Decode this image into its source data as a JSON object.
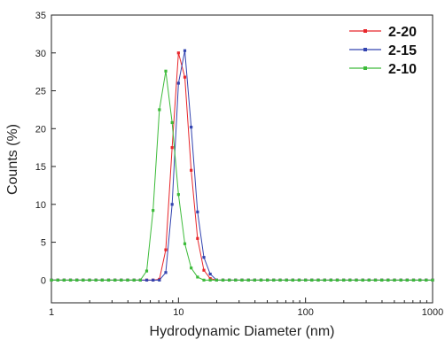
{
  "chart_data": {
    "type": "line",
    "xscale": "log",
    "xlim": [
      1,
      1000
    ],
    "ylim": [
      -3,
      35
    ],
    "xlabel": "Hydrodynamic Diameter (nm)",
    "ylabel": "Counts (%)",
    "xticks": [
      {
        "value": 1,
        "label": "1"
      },
      {
        "value": 10,
        "label": "10"
      },
      {
        "value": 100,
        "label": "100"
      },
      {
        "value": 1000,
        "label": "1000"
      }
    ],
    "yticks": [
      0,
      5,
      10,
      15,
      20,
      25,
      30,
      35
    ],
    "legend_position": "top-right",
    "grid": false,
    "series": [
      {
        "name": "2-20",
        "color": "#e8262b",
        "x": [
          1.0,
          1.122,
          1.259,
          1.413,
          1.585,
          1.778,
          1.995,
          2.239,
          2.512,
          2.818,
          3.162,
          3.548,
          3.981,
          4.467,
          5.012,
          5.623,
          6.31,
          7.079,
          7.943,
          8.913,
          10.0,
          11.22,
          12.59,
          14.13,
          15.85,
          17.78,
          19.95,
          22.39,
          25.12,
          28.18,
          31.62,
          35.48,
          39.81,
          44.67,
          50.12,
          56.23,
          63.1,
          70.79,
          79.43,
          89.13,
          100.0,
          112.2,
          125.9,
          141.3,
          158.5,
          177.8,
          199.5,
          223.9,
          251.2,
          281.8,
          316.2,
          354.8,
          398.1,
          446.7,
          501.2,
          562.3,
          631.0,
          707.9,
          794.3,
          891.3,
          1000.0
        ],
        "values": [
          0,
          0,
          0,
          0,
          0,
          0,
          0,
          0,
          0,
          0,
          0,
          0,
          0,
          0,
          0,
          0,
          0,
          0.1,
          4.0,
          17.5,
          30.0,
          26.8,
          14.5,
          5.5,
          1.3,
          0.2,
          0,
          0,
          0,
          0,
          0,
          0,
          0,
          0,
          0,
          0,
          0,
          0,
          0,
          0,
          0,
          0,
          0,
          0,
          0,
          0,
          0,
          0,
          0,
          0,
          0,
          0,
          0,
          0,
          0,
          0,
          0,
          0,
          0,
          0,
          0
        ]
      },
      {
        "name": "2-15",
        "color": "#3344b0",
        "x": [
          1.0,
          1.122,
          1.259,
          1.413,
          1.585,
          1.778,
          1.995,
          2.239,
          2.512,
          2.818,
          3.162,
          3.548,
          3.981,
          4.467,
          5.012,
          5.623,
          6.31,
          7.079,
          7.943,
          8.913,
          10.0,
          11.22,
          12.59,
          14.13,
          15.85,
          17.78,
          19.95,
          22.39,
          25.12,
          28.18,
          31.62,
          35.48,
          39.81,
          44.67,
          50.12,
          56.23,
          63.1,
          70.79,
          79.43,
          89.13,
          100.0,
          112.2,
          125.9,
          141.3,
          158.5,
          177.8,
          199.5,
          223.9,
          251.2,
          281.8,
          316.2,
          354.8,
          398.1,
          446.7,
          501.2,
          562.3,
          631.0,
          707.9,
          794.3,
          891.3,
          1000.0
        ],
        "values": [
          0,
          0,
          0,
          0,
          0,
          0,
          0,
          0,
          0,
          0,
          0,
          0,
          0,
          0,
          0,
          0,
          0,
          0,
          1.0,
          10.0,
          26.0,
          30.3,
          20.2,
          9.0,
          3.0,
          0.8,
          0,
          0,
          0,
          0,
          0,
          0,
          0,
          0,
          0,
          0,
          0,
          0,
          0,
          0,
          0,
          0,
          0,
          0,
          0,
          0,
          0,
          0,
          0,
          0,
          0,
          0,
          0,
          0,
          0,
          0,
          0,
          0,
          0,
          0,
          0
        ]
      },
      {
        "name": "2-10",
        "color": "#3dbb3a",
        "x": [
          1.0,
          1.122,
          1.259,
          1.413,
          1.585,
          1.778,
          1.995,
          2.239,
          2.512,
          2.818,
          3.162,
          3.548,
          3.981,
          4.467,
          5.012,
          5.623,
          6.31,
          7.079,
          7.943,
          8.913,
          10.0,
          11.22,
          12.59,
          14.13,
          15.85,
          17.78,
          19.95,
          22.39,
          25.12,
          28.18,
          31.62,
          35.48,
          39.81,
          44.67,
          50.12,
          56.23,
          63.1,
          70.79,
          79.43,
          89.13,
          100.0,
          112.2,
          125.9,
          141.3,
          158.5,
          177.8,
          199.5,
          223.9,
          251.2,
          281.8,
          316.2,
          354.8,
          398.1,
          446.7,
          501.2,
          562.3,
          631.0,
          707.9,
          794.3,
          891.3,
          1000.0
        ],
        "values": [
          0,
          0,
          0,
          0,
          0,
          0,
          0,
          0,
          0,
          0,
          0,
          0,
          0,
          0,
          0,
          1.2,
          9.2,
          22.5,
          27.6,
          20.8,
          11.3,
          4.8,
          1.6,
          0.4,
          0,
          0,
          0,
          0,
          0,
          0,
          0,
          0,
          0,
          0,
          0,
          0,
          0,
          0,
          0,
          0,
          0,
          0,
          0,
          0,
          0,
          0,
          0,
          0,
          0,
          0,
          0,
          0,
          0,
          0,
          0,
          0,
          0,
          0,
          0,
          0,
          0
        ]
      }
    ]
  }
}
